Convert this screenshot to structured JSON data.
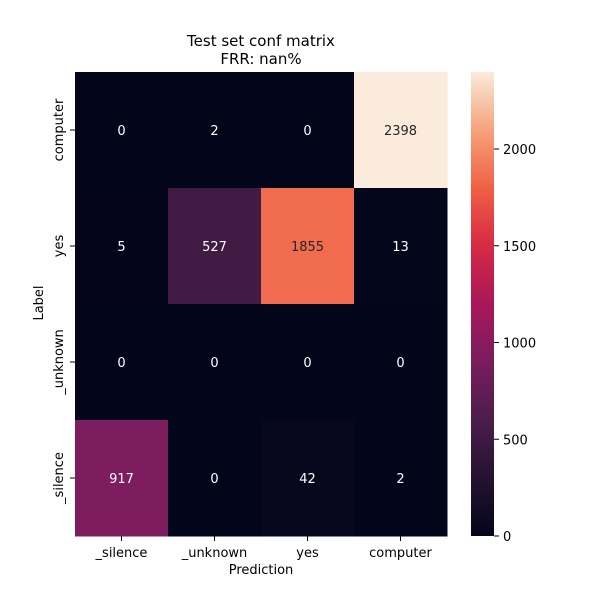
{
  "chart_data": {
    "type": "heatmap",
    "title": "Test set conf matrix",
    "subtitle": "FRR: nan%",
    "xlabel": "Prediction",
    "ylabel": "Label",
    "x_categories": [
      "_silence",
      "_unknown",
      "yes",
      "computer"
    ],
    "y_categories": [
      "computer",
      "yes",
      "_unknown",
      "_silence"
    ],
    "values": [
      [
        0,
        2,
        0,
        2398
      ],
      [
        5,
        527,
        1855,
        13
      ],
      [
        0,
        0,
        0,
        0
      ],
      [
        917,
        0,
        42,
        2
      ]
    ],
    "colorbar": {
      "min": 0,
      "max": 2398,
      "ticks": [
        0,
        500,
        1000,
        1500,
        2000
      ],
      "colormap": "rocket"
    }
  }
}
